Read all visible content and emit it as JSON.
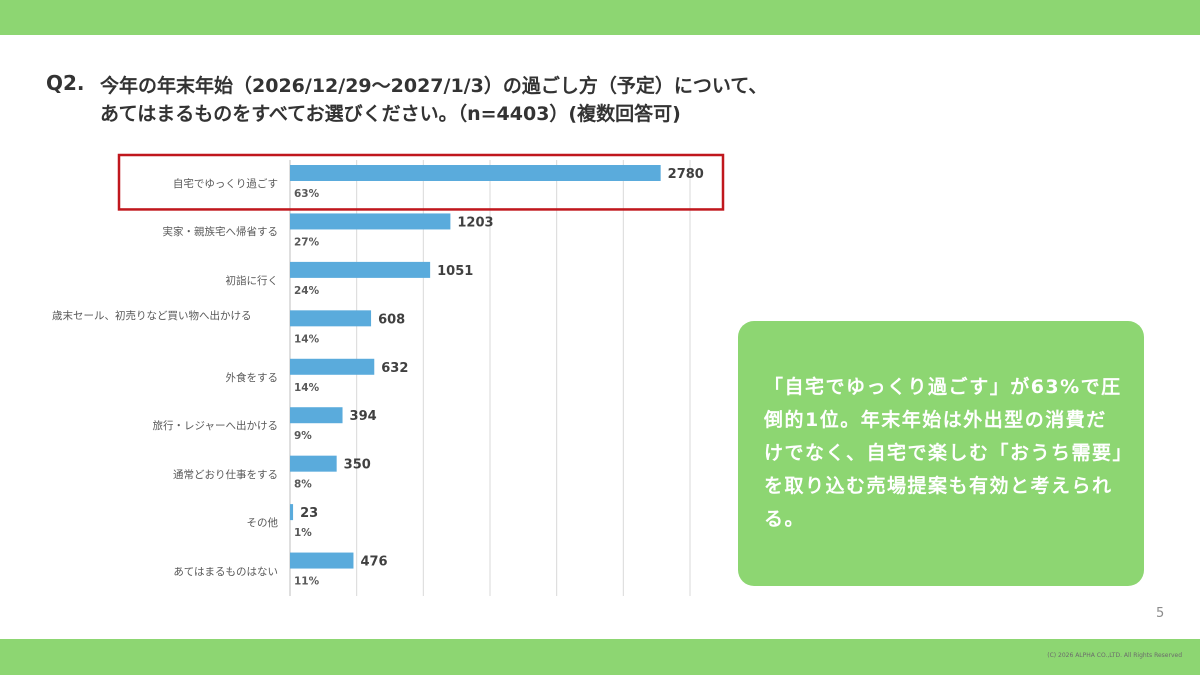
{
  "slide": {
    "question_number": "Q2.",
    "question_line1": "今年の年末年始（2026/12/29〜2027/1/3）の過ごし方（予定）について、",
    "question_line2": "あてはまるものをすべてお選びください。（n=4403）(複数回答可)",
    "page_number": "5",
    "copyright": "(C) 2026 ALPHA CO.,LTD. All Rights Reserved"
  },
  "callout": {
    "text": "「自宅でゆっくり過ごす」が63%で圧倒的1位。年末年始は外出型の消費だけでなく、自宅で楽しむ「おうち需要」を取り込む売場提案も有効と考えられる。"
  },
  "colors": {
    "band": "#8dd672",
    "bar": "#5aabdc",
    "highlight_box": "#c0171d",
    "callout_bg": "#8dd672",
    "gridline": "#d9d9d9"
  },
  "chart_data": {
    "type": "bar",
    "orientation": "horizontal",
    "categories": [
      "自宅でゆっくり過ごす",
      "実家・親族宅へ帰省する",
      "初詣に行く",
      "歳末セール、初売りなど買い物へ出かける",
      "外食をする",
      "旅行・レジャーへ出かける",
      "通常どおり仕事をする",
      "その他",
      "あてはまるものはない"
    ],
    "values": [
      2780,
      1203,
      1051,
      608,
      632,
      394,
      350,
      23,
      476
    ],
    "percent_labels": [
      "63%",
      "27%",
      "24%",
      "14%",
      "14%",
      "9%",
      "8%",
      "1%",
      "11%"
    ],
    "xlim": [
      0,
      3000
    ],
    "grid": true,
    "highlight_index": 0
  }
}
